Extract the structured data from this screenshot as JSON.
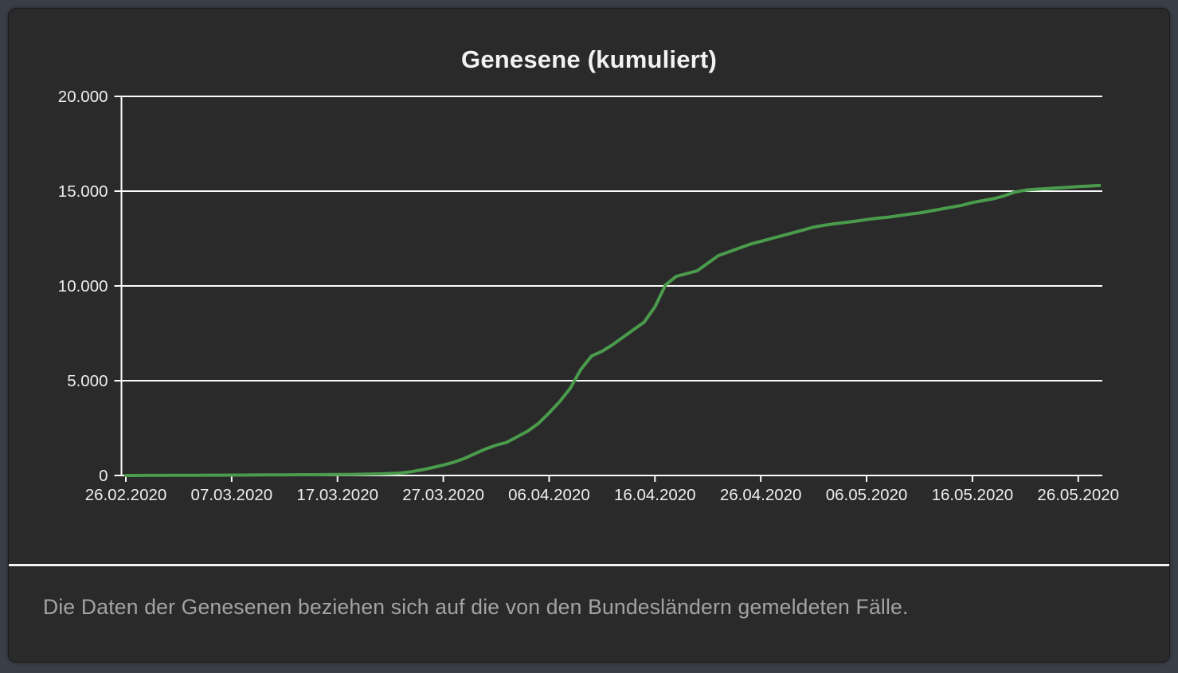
{
  "window": {
    "background_color": "#3a3e46",
    "panel_color": "#2a2a2a"
  },
  "chart_data": {
    "type": "line",
    "title": "Genesene (kumuliert)",
    "grid": true,
    "legend": false,
    "ylim": [
      0,
      20000
    ],
    "y_tick_values": [
      0,
      5000,
      10000,
      15000,
      20000
    ],
    "y_tick_labels": [
      "0",
      "5.000",
      "10.000",
      "15.000",
      "20.000"
    ],
    "x_tick_labels": [
      "26.02.2020",
      "07.03.2020",
      "17.03.2020",
      "27.03.2020",
      "06.04.2020",
      "16.04.2020",
      "26.04.2020",
      "06.05.2020",
      "16.05.2020",
      "26.05.2020"
    ],
    "axis_color": "#fbfbfb",
    "label_color": "#eeeeee",
    "series": [
      {
        "name": "Genesene (kumuliert)",
        "color": "#4a9b4c",
        "dates": [
          "26.02.2020",
          "27.02.2020",
          "28.02.2020",
          "29.02.2020",
          "01.03.2020",
          "02.03.2020",
          "03.03.2020",
          "04.03.2020",
          "05.03.2020",
          "06.03.2020",
          "07.03.2020",
          "08.03.2020",
          "09.03.2020",
          "10.03.2020",
          "11.03.2020",
          "12.03.2020",
          "13.03.2020",
          "14.03.2020",
          "15.03.2020",
          "16.03.2020",
          "17.03.2020",
          "18.03.2020",
          "19.03.2020",
          "20.03.2020",
          "21.03.2020",
          "22.03.2020",
          "23.03.2020",
          "24.03.2020",
          "25.03.2020",
          "26.03.2020",
          "27.03.2020",
          "28.03.2020",
          "29.03.2020",
          "30.03.2020",
          "31.03.2020",
          "01.04.2020",
          "02.04.2020",
          "03.04.2020",
          "04.04.2020",
          "05.04.2020",
          "06.04.2020",
          "07.04.2020",
          "08.04.2020",
          "09.04.2020",
          "10.04.2020",
          "11.04.2020",
          "12.04.2020",
          "13.04.2020",
          "14.04.2020",
          "15.04.2020",
          "16.04.2020",
          "17.04.2020",
          "18.04.2020",
          "19.04.2020",
          "20.04.2020",
          "21.04.2020",
          "22.04.2020",
          "23.04.2020",
          "24.04.2020",
          "25.04.2020",
          "26.04.2020",
          "27.04.2020",
          "28.04.2020",
          "29.04.2020",
          "30.04.2020",
          "01.05.2020",
          "02.05.2020",
          "03.05.2020",
          "04.05.2020",
          "05.05.2020",
          "06.05.2020",
          "07.05.2020",
          "08.05.2020",
          "09.05.2020",
          "10.05.2020",
          "11.05.2020",
          "12.05.2020",
          "13.05.2020",
          "14.05.2020",
          "15.05.2020",
          "16.05.2020",
          "17.05.2020",
          "18.05.2020",
          "19.05.2020",
          "20.05.2020",
          "21.05.2020",
          "22.05.2020",
          "23.05.2020",
          "24.05.2020",
          "25.05.2020",
          "26.05.2020",
          "27.05.2020",
          "28.05.2020"
        ],
        "values": [
          0,
          0,
          3,
          5,
          8,
          10,
          12,
          14,
          16,
          18,
          20,
          22,
          25,
          28,
          30,
          33,
          36,
          40,
          43,
          46,
          50,
          55,
          62,
          70,
          85,
          105,
          130,
          200,
          300,
          420,
          550,
          700,
          900,
          1150,
          1400,
          1600,
          1750,
          2050,
          2350,
          2750,
          3300,
          3900,
          4600,
          5600,
          6300,
          6550,
          6900,
          7300,
          7700,
          8100,
          8900,
          10050,
          10500,
          10650,
          10800,
          11200,
          11600,
          11800,
          12000,
          12200,
          12350,
          12500,
          12650,
          12800,
          12950,
          13100,
          13200,
          13280,
          13350,
          13420,
          13500,
          13570,
          13620,
          13700,
          13780,
          13850,
          13950,
          14050,
          14150,
          14250,
          14400,
          14500,
          14600,
          14750,
          14950,
          15050,
          15100,
          15130,
          15170,
          15200,
          15240,
          15270,
          15300
        ]
      }
    ]
  },
  "footnote": {
    "text": "Die Daten der Genesenen beziehen sich auf die von den Bundesländern gemeldeten Fälle."
  }
}
